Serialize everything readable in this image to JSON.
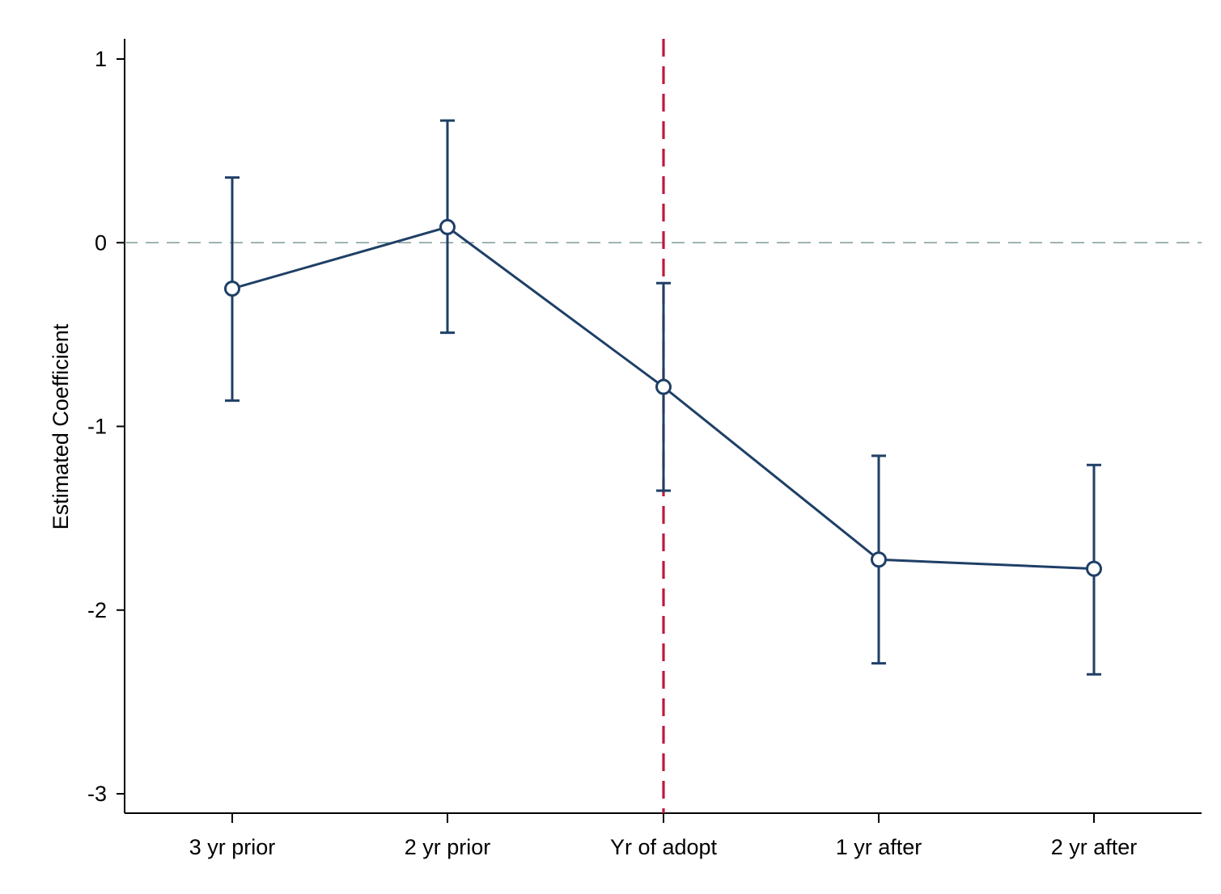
{
  "chart_data": {
    "type": "line",
    "title": "",
    "xlabel": "",
    "ylabel": "Estimated Coefficient",
    "categories": [
      "3 yr prior",
      "2 yr prior",
      "Yr of adopt",
      "1 yr after",
      "2 yr after"
    ],
    "series": [
      {
        "values": [
          -0.25,
          0.085,
          -0.785,
          -1.725,
          -1.775
        ],
        "ci_lower": [
          -0.86,
          -0.49,
          -1.35,
          -2.29,
          -2.35
        ],
        "ci_upper": [
          0.355,
          0.665,
          -0.22,
          -1.16,
          -1.21
        ]
      }
    ],
    "ylim": [
      -3.1,
      1.1
    ],
    "yticks": [
      1,
      0,
      -1,
      -2,
      -3
    ],
    "ytick_labels": [
      "1",
      "0",
      "-1",
      "-2",
      "-3"
    ],
    "reference_lines": [
      {
        "axis": "y",
        "value": 0,
        "style": "dashed",
        "color": "#7f9a9a"
      },
      {
        "axis": "x",
        "category": "Yr of adopt",
        "style": "dashed",
        "color": "#c0173f"
      }
    ],
    "grid": false,
    "legend": "none",
    "colors": {
      "series": "#1f3f66",
      "zero_line": "#7f9a9a",
      "event_line": "#c0173f",
      "axis": "#000000"
    }
  }
}
